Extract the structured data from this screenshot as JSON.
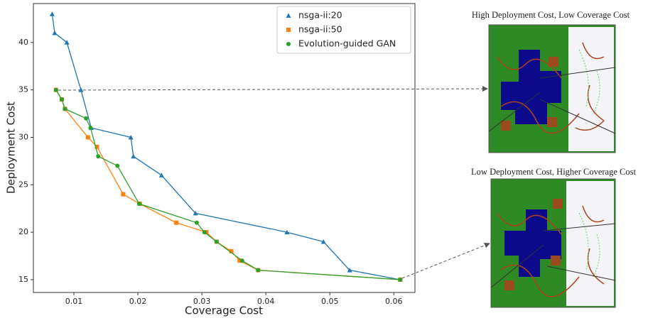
{
  "chart_data": {
    "type": "line",
    "xlabel": "Coverage Cost",
    "ylabel": "Deployment Cost",
    "xlim": [
      0.00367,
      0.0633
    ],
    "ylim": [
      13.65,
      44.1
    ],
    "xticks": [
      0.01,
      0.02,
      0.03,
      0.04,
      0.05,
      0.06
    ],
    "yticks": [
      15,
      20,
      25,
      30,
      35,
      40
    ],
    "legend": "upper right",
    "series": [
      {
        "name": "nsga-ii:20",
        "color": "#1f77b4",
        "marker": "triangle",
        "x": [
          0.0066,
          0.007,
          0.0089,
          0.0111,
          0.0127,
          0.0189,
          0.0193,
          0.0237,
          0.029,
          0.0433,
          0.049,
          0.0531,
          0.061
        ],
        "values": [
          43,
          41,
          40,
          35,
          31,
          30,
          28,
          26,
          22,
          20,
          19,
          16,
          15
        ]
      },
      {
        "name": "nsga-ii:50",
        "color": "#ff7f0e",
        "marker": "square",
        "x": [
          0.0072,
          0.0081,
          0.0086,
          0.0122,
          0.0136,
          0.0177,
          0.0203,
          0.026,
          0.0307,
          0.0323,
          0.0346,
          0.0359,
          0.0388,
          0.061
        ],
        "values": [
          35,
          34,
          33,
          30,
          29,
          24,
          23,
          21,
          20,
          19,
          18,
          17,
          16,
          15
        ]
      },
      {
        "name": "Evolution-guided GAN",
        "color": "#2ca02c",
        "marker": "circle",
        "x": [
          0.0072,
          0.0081,
          0.0086,
          0.0119,
          0.0126,
          0.0138,
          0.0168,
          0.0202,
          0.0292,
          0.0304,
          0.0323,
          0.0363,
          0.0388,
          0.061
        ],
        "values": [
          35,
          34,
          33,
          32,
          31,
          28,
          27,
          23,
          21,
          20,
          19,
          17,
          16,
          15
        ]
      }
    ],
    "annotations": [
      "High Deployment Cost, Low Coverage Cost",
      "Low Deployment Cost, Higher Coverage Cost"
    ]
  }
}
